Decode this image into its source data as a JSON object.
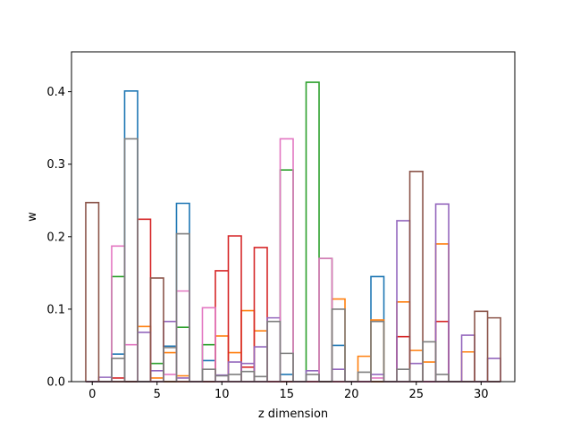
{
  "chart_data": {
    "type": "line",
    "title": "",
    "xlabel": "z dimension",
    "ylabel": "w",
    "xlim": [
      -1.6,
      32.6
    ],
    "ylim": [
      0,
      0.455
    ],
    "xticks": [
      0,
      5,
      10,
      15,
      20,
      25,
      30
    ],
    "yticks": [
      0.0,
      0.1,
      0.2,
      0.3,
      0.4
    ],
    "ytick_labels": [
      "0.0",
      "0.1",
      "0.2",
      "0.3",
      "0.4"
    ],
    "grid": false,
    "legend": "none",
    "step_width": 1,
    "series": [
      {
        "color": "#1f77b4",
        "values": [
          0,
          0,
          0.038,
          0.401,
          0,
          0,
          0.049,
          0.246,
          0,
          0.029,
          0,
          0,
          0,
          0,
          0,
          0.01,
          0,
          0,
          0,
          0.05,
          0,
          0,
          0.145,
          0,
          0,
          0,
          0,
          0,
          0,
          0,
          0,
          0
        ]
      },
      {
        "color": "#ff7f0e",
        "values": [
          0,
          0,
          0,
          0,
          0.076,
          0.005,
          0.04,
          0.008,
          0,
          0,
          0.063,
          0.04,
          0.098,
          0.07,
          0,
          0,
          0,
          0,
          0,
          0.114,
          0,
          0.035,
          0.085,
          0,
          0.11,
          0.043,
          0.027,
          0.19,
          0,
          0.041,
          0,
          0
        ]
      },
      {
        "color": "#2ca02c",
        "values": [
          0,
          0,
          0.145,
          0,
          0,
          0.025,
          0,
          0.075,
          0,
          0.051,
          0,
          0,
          0,
          0,
          0,
          0.292,
          0,
          0.413,
          0.17,
          0,
          0,
          0,
          0,
          0,
          0,
          0,
          0,
          0,
          0,
          0,
          0,
          0
        ]
      },
      {
        "color": "#d62728",
        "values": [
          0,
          0,
          0.005,
          0,
          0.224,
          0,
          0,
          0,
          0,
          0,
          0.153,
          0.201,
          0.02,
          0.185,
          0,
          0,
          0,
          0,
          0,
          0,
          0,
          0,
          0,
          0,
          0.062,
          0,
          0,
          0.083,
          0,
          0,
          0,
          0
        ]
      },
      {
        "color": "#9467bd",
        "values": [
          0,
          0.006,
          0,
          0,
          0.068,
          0.015,
          0.083,
          0.005,
          0,
          0,
          0.009,
          0.027,
          0.025,
          0.048,
          0.088,
          0,
          0,
          0.015,
          0,
          0.017,
          0,
          0,
          0.01,
          0,
          0.222,
          0.025,
          0,
          0.245,
          0,
          0.064,
          0,
          0.032
        ]
      },
      {
        "color": "#8c564b",
        "values": [
          0.247,
          0,
          0,
          0,
          0,
          0.143,
          0,
          0,
          0,
          0,
          0,
          0,
          0,
          0,
          0,
          0,
          0,
          0,
          0,
          0,
          0,
          0,
          0,
          0,
          0,
          0.29,
          0,
          0,
          0,
          0,
          0.097,
          0.088
        ]
      },
      {
        "color": "#e377c2",
        "values": [
          0,
          0,
          0.187,
          0.051,
          0,
          0,
          0.01,
          0.125,
          0,
          0.102,
          0,
          0,
          0,
          0,
          0,
          0.335,
          0,
          0,
          0.17,
          0,
          0,
          0,
          0.005,
          0,
          0,
          0,
          0,
          0,
          0,
          0,
          0,
          0
        ]
      },
      {
        "color": "#7f7f7f",
        "values": [
          0,
          0,
          0.032,
          0.335,
          0,
          0,
          0.047,
          0.204,
          0,
          0.017,
          0.008,
          0.01,
          0.014,
          0.007,
          0.083,
          0.039,
          0,
          0.01,
          0,
          0.1,
          0,
          0.013,
          0.083,
          0,
          0.017,
          0,
          0.055,
          0.01,
          0,
          0,
          0,
          0
        ]
      }
    ]
  }
}
